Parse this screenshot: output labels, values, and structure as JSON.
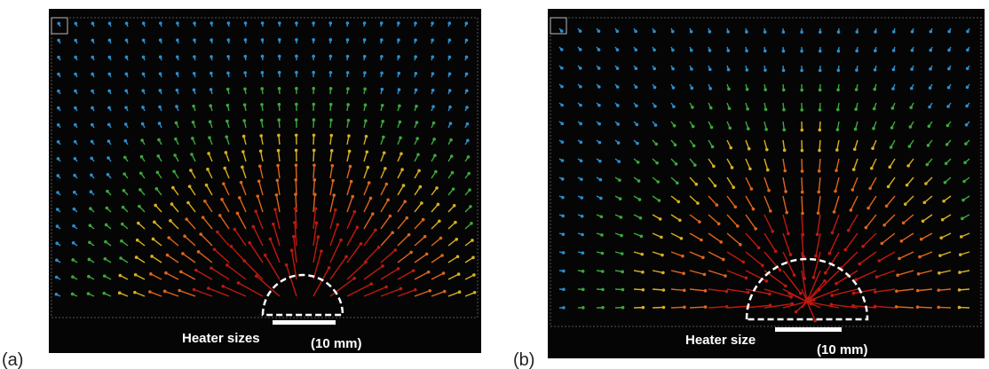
{
  "panels": [
    {
      "label": "(a)",
      "caption": "Heater sizes",
      "scale": "(10 mm)"
    },
    {
      "label": "(b)",
      "caption": "Heater size",
      "scale": "(10 mm)"
    }
  ]
}
